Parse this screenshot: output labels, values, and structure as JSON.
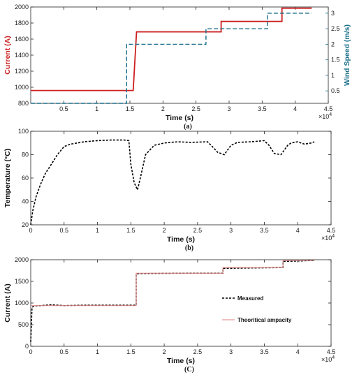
{
  "colors": {
    "current": "#cc1f1f",
    "wind": "#1a6f8a",
    "measured": "#000000",
    "theory": "#e08080"
  },
  "chart_data": [
    {
      "id": "a",
      "type": "line",
      "caption": "(a)",
      "xlabel": "Time (s)",
      "x_exponent_base": "×10",
      "x_exponent_power": "4",
      "xlim": [
        0,
        45000
      ],
      "xticks": [
        0.5,
        1,
        1.5,
        2,
        2.5,
        3,
        3.5,
        4,
        4.5
      ],
      "ylabel_left": "Current (A)",
      "ylim_left": [
        800,
        2000
      ],
      "yticks_left": [
        800,
        1000,
        1200,
        1400,
        1600,
        1800,
        2000
      ],
      "ylabel_right": "Wind Speed (m/s)",
      "ylim_right": [
        0.1,
        3.2
      ],
      "yticks_right": [
        0.5,
        1,
        1.5,
        2,
        2.5,
        3
      ],
      "grid": false,
      "series": [
        {
          "axis": "left",
          "style": "solid",
          "x": [
            0,
            15500,
            15500,
            16000,
            16000,
            28800,
            28800,
            38000,
            38000,
            42500
          ],
          "y": [
            960,
            960,
            960,
            1690,
            1690,
            1690,
            1820,
            1820,
            1985,
            1985
          ]
        },
        {
          "axis": "right",
          "style": "dashed",
          "x": [
            0,
            14500,
            14500,
            26500,
            26500,
            35800,
            35800,
            42500
          ],
          "y": [
            0.1,
            0.1,
            2.0,
            2.0,
            2.5,
            2.5,
            3.0,
            3.0
          ]
        }
      ]
    },
    {
      "id": "b",
      "type": "line",
      "caption": "(b)",
      "xlabel": "Time (s)",
      "x_exponent_base": "×10",
      "x_exponent_power": "4",
      "xlim": [
        0,
        45000
      ],
      "xticks": [
        0,
        0.5,
        1,
        1.5,
        2,
        2.5,
        3,
        3.5,
        4,
        4.5
      ],
      "ylabel": "Temperature (°C)",
      "ylim": [
        20,
        100
      ],
      "yticks": [
        20,
        40,
        60,
        80,
        100
      ],
      "grid": false,
      "series": [
        {
          "style": "dashed",
          "x": [
            0,
            300,
            800,
            1500,
            2200,
            3000,
            4000,
            5000,
            6000,
            8000,
            10000,
            12000,
            14000,
            14700,
            15000,
            15500,
            16000,
            16500,
            17200,
            18500,
            20000,
            22000,
            24000,
            26500,
            27200,
            28000,
            29000,
            30000,
            31000,
            33000,
            35000,
            35700,
            36500,
            37500,
            38500,
            39000,
            40000,
            41000,
            42000,
            42500
          ],
          "y": [
            20,
            32,
            44,
            55,
            64,
            71,
            80,
            87,
            89,
            91,
            92,
            92.5,
            92.5,
            92,
            72,
            56,
            50,
            62,
            80,
            88,
            90,
            91,
            90.5,
            91,
            87,
            82,
            80,
            88,
            90.5,
            91,
            92,
            88,
            81,
            80,
            88,
            90,
            91,
            89,
            90,
            91
          ]
        }
      ]
    },
    {
      "id": "c",
      "type": "line",
      "caption": "(C)",
      "xlabel": "Time (s)",
      "x_exponent_base": "×10",
      "x_exponent_power": "4",
      "xlim": [
        0,
        45000
      ],
      "xticks": [
        0,
        0.5,
        1,
        1.5,
        2,
        2.5,
        3,
        3.5,
        4,
        4.5
      ],
      "ylabel": "Current (A)",
      "ylim": [
        0,
        2000
      ],
      "yticks": [
        0,
        500,
        1000,
        1500,
        2000
      ],
      "grid": false,
      "legend": {
        "placement": "center-right",
        "entries": [
          "Measured",
          "Theoritical ampacity"
        ]
      },
      "series": [
        {
          "name": "Measured",
          "style": "dashed",
          "x": [
            0,
            200,
            500,
            1500,
            3000,
            5000,
            8000,
            12000,
            15800,
            15800,
            16200,
            20000,
            25000,
            28800,
            28800,
            33000,
            37800,
            37800,
            40000,
            42500
          ],
          "y": [
            100,
            900,
            930,
            940,
            960,
            940,
            950,
            950,
            950,
            1660,
            1680,
            1685,
            1690,
            1690,
            1800,
            1810,
            1820,
            1960,
            1970,
            1985
          ]
        },
        {
          "name": "Theoritical ampacity",
          "style": "solid",
          "x": [
            0,
            15800,
            15800,
            28800,
            28800,
            37800,
            37800,
            42500
          ],
          "y": [
            940,
            940,
            1690,
            1690,
            1820,
            1820,
            1980,
            1980
          ]
        }
      ]
    }
  ]
}
